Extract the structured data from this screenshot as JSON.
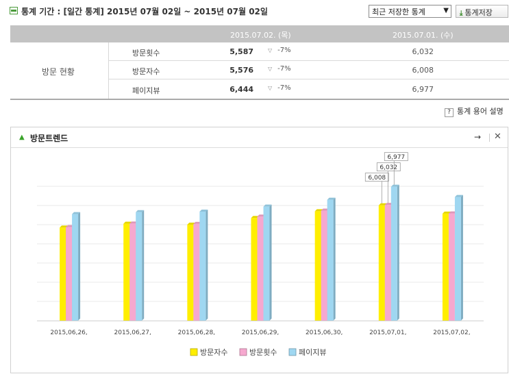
{
  "header": {
    "period_text": "통계 기간 : [일간 통계] 2015년 07월 02일 ~ 2015년 07월 02일",
    "saved_select": "최근 저장한 통계",
    "save_button": "통계저장"
  },
  "table": {
    "col_current": "2015.07.02. (목)",
    "col_previous": "2015.07.01. (수)",
    "group_label": "방문 현황",
    "rows": [
      {
        "metric": "방문횟수",
        "current": "5,587",
        "change": "-7%",
        "previous": "6,032"
      },
      {
        "metric": "방문자수",
        "current": "5,576",
        "change": "-7%",
        "previous": "6,008"
      },
      {
        "metric": "페이지뷰",
        "current": "6,444",
        "change": "-7%",
        "previous": "6,977"
      }
    ]
  },
  "glossary_link": "통계 용어 설명",
  "panel": {
    "title": "방문트렌드"
  },
  "chart_data": {
    "type": "bar",
    "categories": [
      "2015.06.26.",
      "2015.06.27.",
      "2015.06.28.",
      "2015.06.29.",
      "2015.06.30.",
      "2015.07.01.",
      "2015.07.02."
    ],
    "series": [
      {
        "name": "방문자수",
        "color": "#ffee00",
        "values": [
          4850,
          5050,
          5000,
          5350,
          5700,
          6008,
          5576
        ]
      },
      {
        "name": "방문횟수",
        "color": "#f6a8cf",
        "values": [
          4870,
          5060,
          5040,
          5420,
          5730,
          6032,
          5587
        ]
      },
      {
        "name": "페이지뷰",
        "color": "#9fd7f1",
        "values": [
          5550,
          5650,
          5680,
          5940,
          6300,
          6977,
          6444
        ]
      }
    ],
    "data_labels": [
      {
        "category": "2015.07.01.",
        "series": "방문자수",
        "text": "6,008"
      },
      {
        "category": "2015.07.01.",
        "series": "방문횟수",
        "text": "6,032"
      },
      {
        "category": "2015.07.01.",
        "series": "페이지뷰",
        "text": "6,977"
      }
    ],
    "ylim": [
      0,
      8000
    ],
    "grid": true,
    "legend": "bottom-center"
  }
}
